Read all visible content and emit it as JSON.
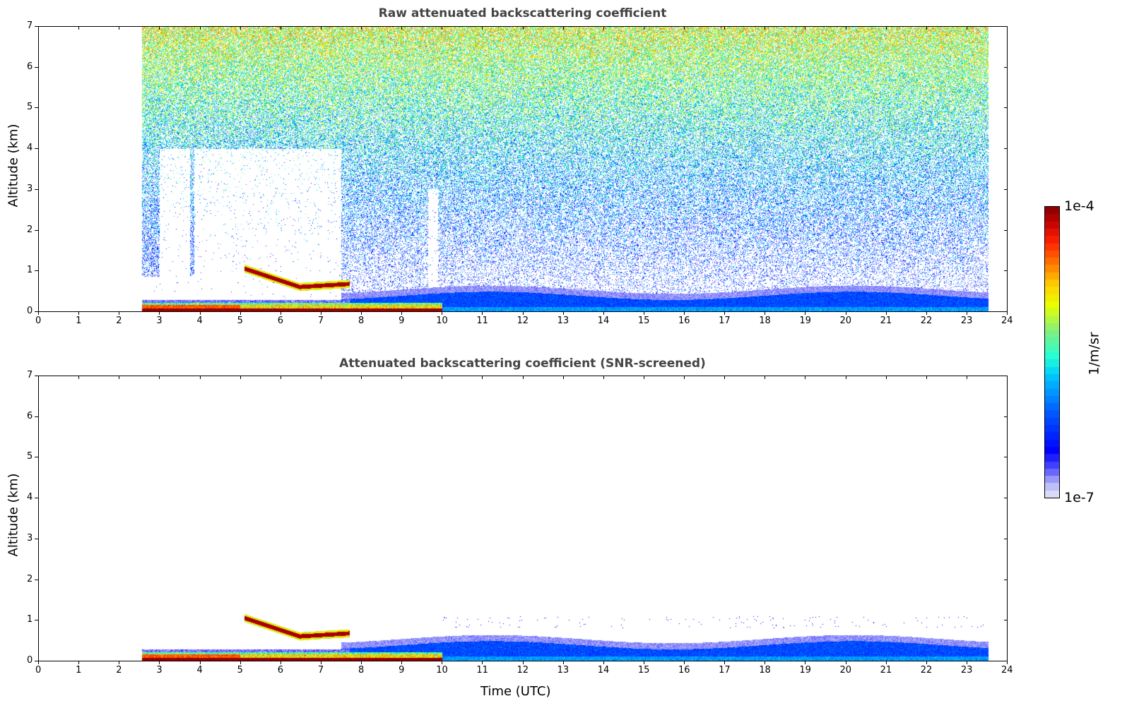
{
  "chart_data": [
    {
      "type": "heatmap",
      "title": "Raw attenuated backscattering coefficient",
      "xlabel": "",
      "ylabel": "Altitude (km)",
      "xlim": [
        0,
        24
      ],
      "ylim": [
        0,
        7
      ],
      "xticks": [
        "0",
        "1",
        "2",
        "3",
        "4",
        "5",
        "6",
        "7",
        "8",
        "9",
        "10",
        "11",
        "12",
        "13",
        "14",
        "15",
        "16",
        "17",
        "18",
        "19",
        "20",
        "21",
        "22",
        "23",
        "24"
      ],
      "yticks": [
        "0",
        "1",
        "2",
        "3",
        "4",
        "5",
        "6",
        "7"
      ],
      "screened": false,
      "data_time_range": [
        2.55,
        23.55
      ],
      "features": [
        {
          "name": "surface layer",
          "time": [
            2.55,
            10.0
          ],
          "altitude": [
            0,
            0.2
          ],
          "log10_value": -4.2
        },
        {
          "name": "descending cloud layer",
          "time": [
            5.1,
            7.7
          ],
          "altitude_start": 1.05,
          "altitude_end": 0.65,
          "log10_value": -4.1
        },
        {
          "name": "boundary layer",
          "time": [
            7.6,
            23.55
          ],
          "altitude": [
            0,
            0.45
          ],
          "log10_value": -6.3
        },
        {
          "name": "background noise",
          "time": [
            2.55,
            23.55
          ],
          "altitude": [
            0.5,
            7
          ],
          "log10_value_range": [
            -6.8,
            -4.6
          ]
        }
      ]
    },
    {
      "type": "heatmap",
      "title": "Attenuated backscattering coefficient (SNR-screened)",
      "xlabel": "Time (UTC)",
      "ylabel": "Altitude (km)",
      "xlim": [
        0,
        24
      ],
      "ylim": [
        0,
        7
      ],
      "xticks": [
        "0",
        "1",
        "2",
        "3",
        "4",
        "5",
        "6",
        "7",
        "8",
        "9",
        "10",
        "11",
        "12",
        "13",
        "14",
        "15",
        "16",
        "17",
        "18",
        "19",
        "20",
        "21",
        "22",
        "23",
        "24"
      ],
      "yticks": [
        "0",
        "1",
        "2",
        "3",
        "4",
        "5",
        "6",
        "7"
      ],
      "screened": true,
      "data_time_range": [
        2.55,
        23.55
      ],
      "features": [
        {
          "name": "surface layer",
          "time": [
            2.55,
            10.0
          ],
          "altitude": [
            0,
            0.2
          ],
          "log10_value": -4.2
        },
        {
          "name": "descending cloud layer",
          "time": [
            5.1,
            7.7
          ],
          "altitude_start": 1.05,
          "altitude_end": 0.65,
          "log10_value": -4.1
        },
        {
          "name": "boundary layer",
          "time": [
            7.6,
            23.55
          ],
          "altitude": [
            0,
            0.5
          ],
          "log10_value": -6.3
        }
      ]
    }
  ],
  "colorbar": {
    "min_label": "1e-7",
    "max_label": "1e-4",
    "label": "1/m/sr",
    "range_log10": [
      -7,
      -4
    ],
    "colors": [
      "#e8e8f8",
      "#b0b0f8",
      "#5050ff",
      "#0000ff",
      "#0060ff",
      "#00c8ff",
      "#20ffd8",
      "#80f080",
      "#e8ff00",
      "#ffd000",
      "#ff7000",
      "#ff2000",
      "#c00000",
      "#800000"
    ]
  }
}
